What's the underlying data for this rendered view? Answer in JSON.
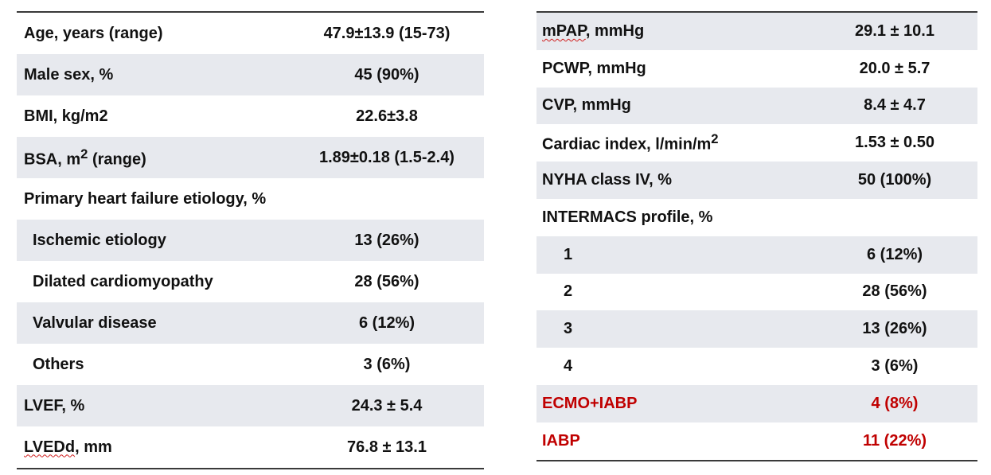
{
  "left_table": {
    "rows": [
      {
        "label": "Age,  years (range)",
        "value": "47.9±13.9   (15-73)"
      },
      {
        "label": "Male sex, %",
        "value": "45 (90%)"
      },
      {
        "label": "BMI, kg/m2",
        "value": "22.6±3.8"
      },
      {
        "label_pre": "BSA, m",
        "label_sup": "2",
        "label_post": " (range)",
        "value": "1.89±0.18  (1.5-2.4)"
      },
      {
        "label": "Primary heart failure etiology, %",
        "value": ""
      },
      {
        "label": "Ischemic etiology",
        "value": "13 (26%)"
      },
      {
        "label": "Dilated cardiomyopathy",
        "value": "28 (56%)"
      },
      {
        "label": "Valvular disease",
        "value": "6 (12%)"
      },
      {
        "label": "Others",
        "value": "3 (6%)"
      },
      {
        "label": "LVEF, %",
        "value": "24.3 ± 5.4"
      },
      {
        "label_marked": "LVEDd",
        "label_post": ", mm",
        "value": "76.8 ± 13.1"
      }
    ]
  },
  "right_table": {
    "rows": [
      {
        "label_marked": "mPAP",
        "label_post": ", mmHg",
        "value": "29.1 ± 10.1"
      },
      {
        "label": "PCWP, mmHg",
        "value": "20.0 ± 5.7"
      },
      {
        "label": "CVP, mmHg",
        "value": "8.4 ± 4.7"
      },
      {
        "label_pre": "Cardiac index, l/min/m",
        "label_sup": "2",
        "value": "1.53 ± 0.50"
      },
      {
        "label": "NYHA class IV, %",
        "value": "50 (100%)"
      },
      {
        "label": "INTERMACS profile, %",
        "value": ""
      },
      {
        "label": "1",
        "value": "6 (12%)"
      },
      {
        "label": "2",
        "value": "28 (56%)"
      },
      {
        "label": "3",
        "value": "13 (26%)"
      },
      {
        "label": "4",
        "value": "3 (6%)"
      },
      {
        "label": "ECMO+IABP",
        "value": "4 (8%)"
      },
      {
        "label": "IABP",
        "value": "11 (22%)"
      }
    ]
  },
  "colors": {
    "row_shade": "#e7e9ee",
    "highlight_text": "#c00000",
    "rule": "#3a3a3a"
  }
}
